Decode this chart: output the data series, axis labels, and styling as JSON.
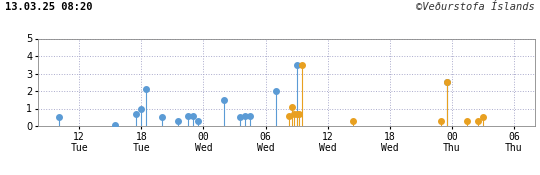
{
  "title_left": "13.03.25 08:20",
  "title_right": "©Veðurstofa Íslands",
  "xlim": [
    -1,
    47
  ],
  "ylim": [
    0,
    5
  ],
  "yticks": [
    0,
    1,
    2,
    3,
    4,
    5
  ],
  "xtick_positions": [
    3,
    9,
    15,
    21,
    27,
    33,
    39,
    45
  ],
  "xtick_labels": [
    "12\nTue",
    "18\nTue",
    "00\nWed",
    "06\nWed",
    "12\nWed",
    "18\nWed",
    "00\nThu",
    "06\nThu"
  ],
  "blue_color": "#5b9bd5",
  "yellow_color": "#e8a020",
  "bg_color": "#ffffff",
  "plot_bg": "#ffffff",
  "blue_events": [
    {
      "x": 1.0,
      "mag": 0.5
    },
    {
      "x": 6.5,
      "mag": 0.05
    },
    {
      "x": 8.5,
      "mag": 0.7
    },
    {
      "x": 9.0,
      "mag": 1.0
    },
    {
      "x": 9.5,
      "mag": 2.1
    },
    {
      "x": 11.0,
      "mag": 0.5
    },
    {
      "x": 12.5,
      "mag": 0.3
    },
    {
      "x": 13.5,
      "mag": 0.6
    },
    {
      "x": 14.0,
      "mag": 0.6
    },
    {
      "x": 14.5,
      "mag": 0.3
    },
    {
      "x": 17.0,
      "mag": 1.5
    },
    {
      "x": 18.5,
      "mag": 0.5
    },
    {
      "x": 19.0,
      "mag": 0.6
    },
    {
      "x": 19.5,
      "mag": 0.6
    },
    {
      "x": 22.0,
      "mag": 2.0
    },
    {
      "x": 24.0,
      "mag": 3.5
    },
    {
      "x": 38.5,
      "mag": 2.5
    }
  ],
  "yellow_events": [
    {
      "x": 23.3,
      "mag": 0.6
    },
    {
      "x": 23.6,
      "mag": 1.1
    },
    {
      "x": 23.8,
      "mag": 0.7
    },
    {
      "x": 24.0,
      "mag": 0.7
    },
    {
      "x": 24.2,
      "mag": 0.7
    },
    {
      "x": 24.5,
      "mag": 3.5
    },
    {
      "x": 29.5,
      "mag": 0.3
    },
    {
      "x": 38.0,
      "mag": 0.3
    },
    {
      "x": 38.5,
      "mag": 2.5
    },
    {
      "x": 40.5,
      "mag": 0.3
    },
    {
      "x": 41.5,
      "mag": 0.3
    },
    {
      "x": 42.0,
      "mag": 0.5
    }
  ]
}
